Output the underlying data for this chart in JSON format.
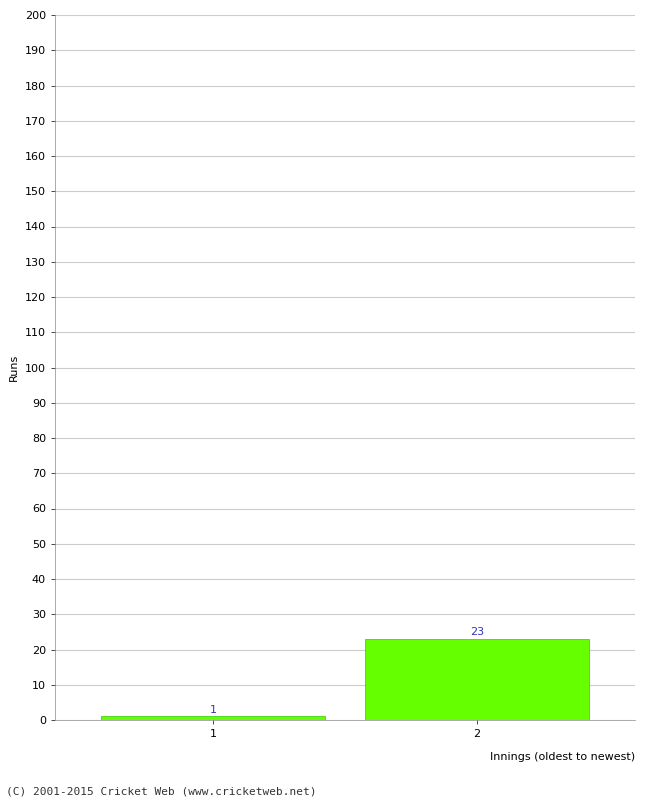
{
  "categories": [
    "1",
    "2"
  ],
  "values": [
    1,
    23
  ],
  "bar_color": "#66ff00",
  "bar_edge_color": "#33cc00",
  "ylabel": "Runs",
  "xlabel": "Innings (oldest to newest)",
  "ylim": [
    0,
    200
  ],
  "yticks": [
    0,
    10,
    20,
    30,
    40,
    50,
    60,
    70,
    80,
    90,
    100,
    110,
    120,
    130,
    140,
    150,
    160,
    170,
    180,
    190,
    200
  ],
  "background_color": "#ffffff",
  "grid_color": "#cccccc",
  "footer": "(C) 2001-2015 Cricket Web (www.cricketweb.net)",
  "bar_width": 0.85,
  "ylabel_fontsize": 8,
  "xlabel_fontsize": 8,
  "annotation_fontsize": 8,
  "annotation_color": "#3333bb",
  "footer_fontsize": 8,
  "tick_fontsize": 8
}
